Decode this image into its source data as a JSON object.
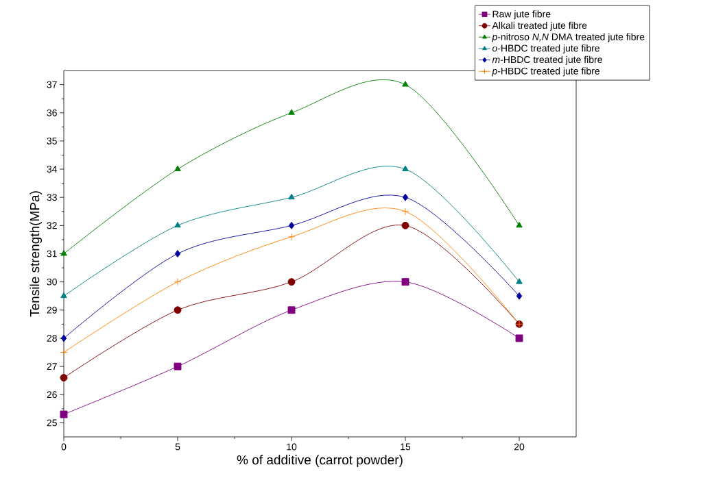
{
  "chart_data": {
    "type": "line",
    "xlabel": "% of additive (carrot powder)",
    "ylabel": "Tensile strength(MPa)",
    "x": [
      0,
      5,
      10,
      15,
      20
    ],
    "xlim": [
      0,
      22.5
    ],
    "ylim": [
      24.5,
      37.5
    ],
    "xticks": [
      0,
      5,
      10,
      15,
      20
    ],
    "yticks": [
      25,
      26,
      27,
      28,
      29,
      30,
      31,
      32,
      33,
      34,
      35,
      36,
      37
    ],
    "legend": "top right",
    "grid": false,
    "line_style": "solid",
    "series": [
      {
        "name": "Raw jute fibre",
        "color": "#800080",
        "marker": "square",
        "values": [
          25.3,
          27,
          29,
          30,
          28
        ]
      },
      {
        "name": "Alkali treated jute fibre",
        "color": "#800000",
        "marker": "circle",
        "values": [
          26.6,
          29,
          30,
          32,
          28.5
        ]
      },
      {
        "name": "*p*-nitroso *N,N* DMA treated jute fibre",
        "color": "#008000",
        "marker": "triangle",
        "values": [
          31,
          34,
          36,
          37,
          32
        ]
      },
      {
        "name": "*o*-HBDC treated jute fibre",
        "color": "#008080",
        "marker": "triangle-down",
        "values": [
          29.5,
          32,
          33,
          34,
          30
        ]
      },
      {
        "name": "*m*-HBDC treated jute fibre",
        "color": "#0000a0",
        "marker": "diamond",
        "values": [
          28,
          31,
          32,
          33,
          29.5
        ]
      },
      {
        "name": "*p*-HBDC treated jute fibre",
        "color": "#ff8000",
        "marker": "plus",
        "values": [
          27.5,
          30,
          31.6,
          32.5,
          28.5
        ]
      }
    ]
  }
}
